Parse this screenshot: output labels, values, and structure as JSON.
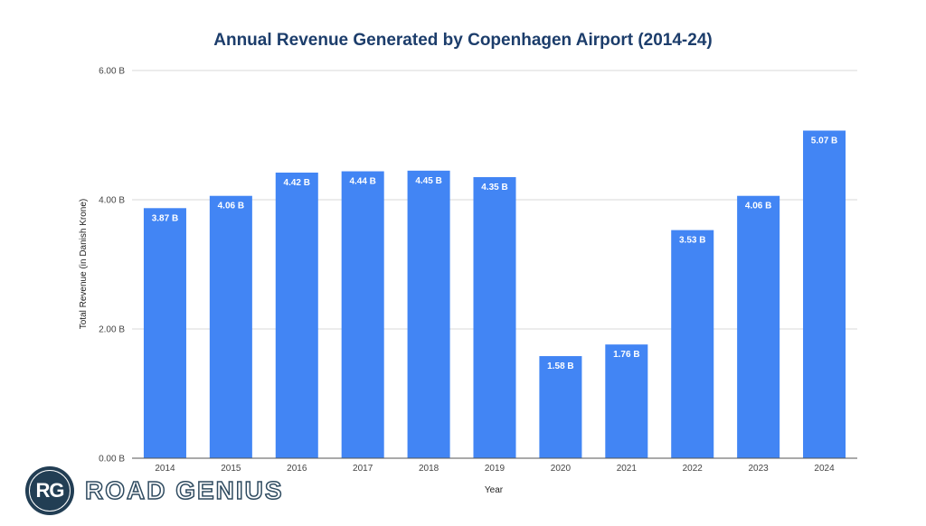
{
  "chart_data": {
    "type": "bar",
    "title": "Annual Revenue Generated by Copenhagen Airport (2014-24)",
    "xlabel": "Year",
    "ylabel": "Total Revenue (in Danish Krone)",
    "categories": [
      "2014",
      "2015",
      "2016",
      "2017",
      "2018",
      "2019",
      "2020",
      "2021",
      "2022",
      "2023",
      "2024"
    ],
    "values": [
      3.87,
      4.06,
      4.42,
      4.44,
      4.45,
      4.35,
      1.58,
      1.76,
      3.53,
      4.06,
      5.07
    ],
    "data_labels": [
      "3.87 B",
      "4.06 B",
      "4.42 B",
      "4.44 B",
      "4.45 B",
      "4.35 B",
      "1.58 B",
      "1.76 B",
      "3.53 B",
      "4.06 B",
      "5.07 B"
    ],
    "ylim": [
      0,
      6
    ],
    "yticks": [
      0,
      2,
      4,
      6
    ],
    "ytick_labels": [
      "0.00 B",
      "2.00 B",
      "4.00 B",
      "6.00 B"
    ],
    "grid": true,
    "legend": "none",
    "bar_color": "#4285f4",
    "title_color": "#1c3d6b"
  },
  "logo": {
    "badge_text": "RG",
    "brand_text": "ROAD GENIUS"
  }
}
